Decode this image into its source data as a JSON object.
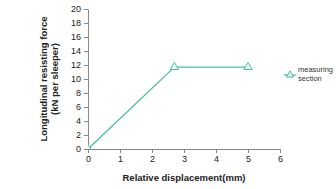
{
  "chart_data": {
    "type": "line",
    "x_label": "Relative displacement(mm)",
    "y_label": [
      "Longitudinal resisting force",
      "(kN per sleeper)"
    ],
    "series": [
      {
        "name": "measuring section",
        "color": "#4dbf9f",
        "marker": "triangle",
        "line_style": "solid",
        "x": [
          0,
          2.7,
          5
        ],
        "values": [
          0,
          11.7,
          11.7
        ]
      }
    ],
    "xlim": [
      0,
      6
    ],
    "xticks": [
      0,
      1,
      2,
      3,
      4,
      5,
      6
    ],
    "ylim": [
      0,
      20
    ],
    "yticks": [
      0,
      2,
      4,
      6,
      8,
      10,
      12,
      14,
      16,
      18,
      20
    ],
    "grid": false,
    "legend": "right"
  }
}
